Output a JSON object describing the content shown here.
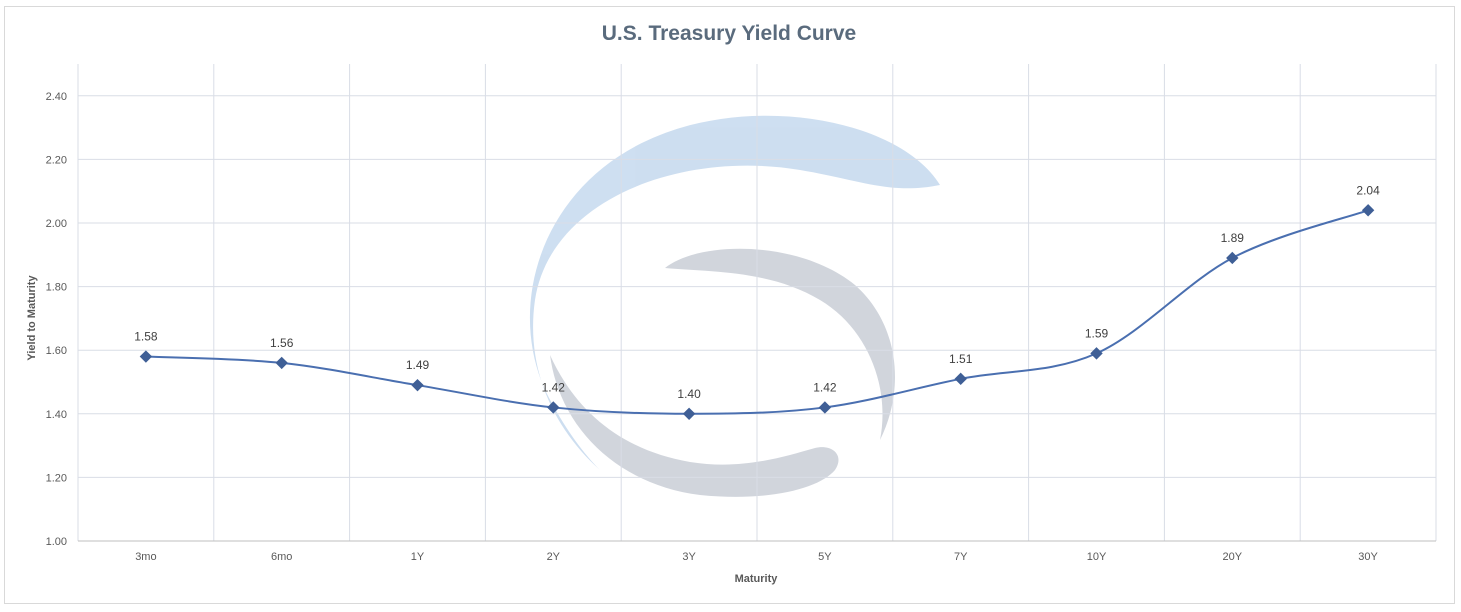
{
  "chart_data": {
    "type": "line",
    "title": "U.S. Treasury Yield Curve",
    "xlabel": "Maturity",
    "ylabel": "Yield to Maturity",
    "categories": [
      "3mo",
      "6mo",
      "1Y",
      "2Y",
      "3Y",
      "5Y",
      "7Y",
      "10Y",
      "20Y",
      "30Y"
    ],
    "series": [
      {
        "values": [
          1.58,
          1.56,
          1.49,
          1.42,
          1.4,
          1.42,
          1.51,
          1.59,
          1.89,
          2.04
        ],
        "labels": [
          "1.58",
          "1.56",
          "1.49",
          "1.42",
          "1.40",
          "1.42",
          "1.51",
          "1.59",
          "1.89",
          "2.04"
        ]
      }
    ],
    "ylim": [
      1.0,
      2.5
    ],
    "yticks": [
      "1.00",
      "1.20",
      "1.40",
      "1.60",
      "1.80",
      "2.00",
      "2.20",
      "2.40"
    ],
    "ytick_values": [
      1.0,
      1.2,
      1.4,
      1.6,
      1.8,
      2.0,
      2.2,
      2.4
    ],
    "grid": true,
    "smooth": true,
    "marker": "diamond",
    "line_color": "#4a6fb0",
    "marker_color": "#3f5f96",
    "watermark": "company-logo-watermark"
  }
}
